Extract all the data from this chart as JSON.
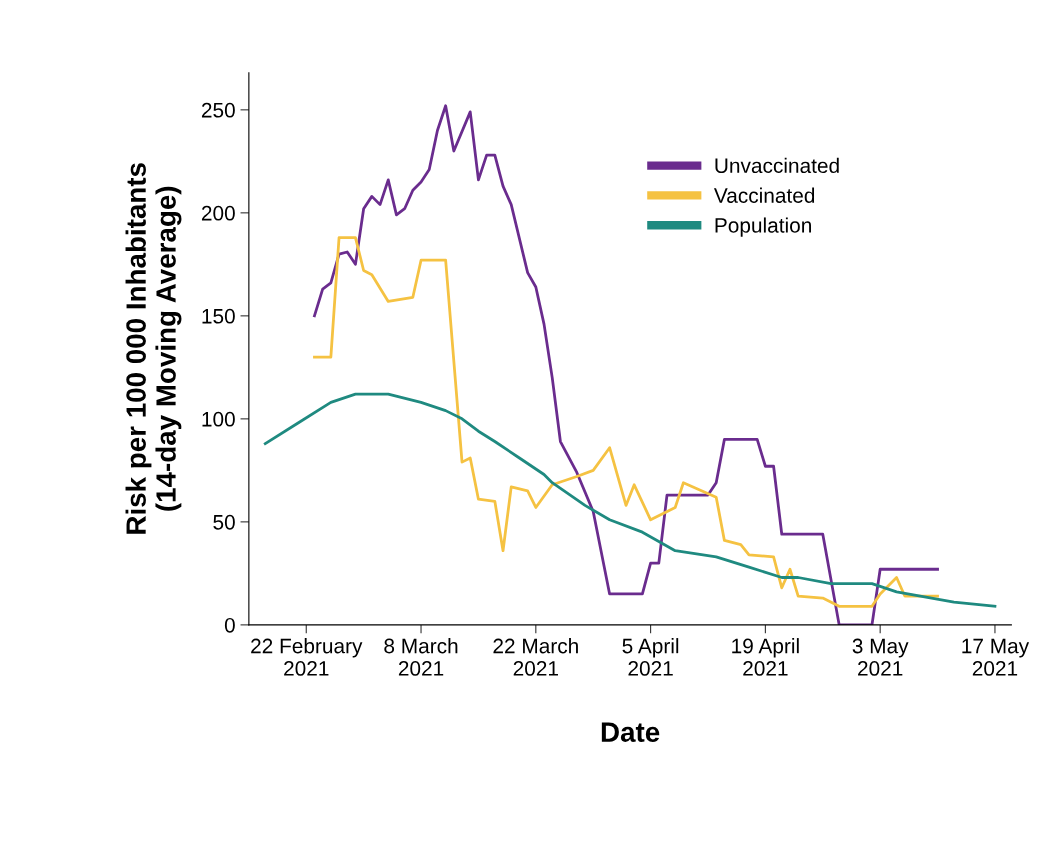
{
  "chart_data": {
    "type": "line",
    "xlabel": "Date",
    "ylabel": "Risk per 100 000 Inhabitants\n(14-day Moving Average)",
    "xlim": [
      "2021-02-15",
      "2021-05-19"
    ],
    "xticks": [
      {
        "value": "2021-02-22",
        "label": "22 February\n2021"
      },
      {
        "value": "2021-03-08",
        "label": "8 March\n2021"
      },
      {
        "value": "2021-03-22",
        "label": "22 March\n2021"
      },
      {
        "value": "2021-04-05",
        "label": "5 April\n2021"
      },
      {
        "value": "2021-04-19",
        "label": "19 April\n2021"
      },
      {
        "value": "2021-05-03",
        "label": "3 May\n2021"
      },
      {
        "value": "2021-05-17",
        "label": "17 May\n2021"
      }
    ],
    "ylim": [
      0,
      268
    ],
    "yticks": [
      0,
      50,
      100,
      150,
      200,
      250
    ],
    "grid": false,
    "legend": "top right",
    "marker": "none",
    "line_style": "solid",
    "series": [
      {
        "name": "Unvaccinated",
        "color": "#6a2c8e",
        "x": [
          "2021-02-23",
          "2021-02-24",
          "2021-02-25",
          "2021-02-26",
          "2021-02-27",
          "2021-02-28",
          "2021-03-01",
          "2021-03-02",
          "2021-03-03",
          "2021-03-04",
          "2021-03-05",
          "2021-03-06",
          "2021-03-07",
          "2021-03-08",
          "2021-03-09",
          "2021-03-10",
          "2021-03-11",
          "2021-03-12",
          "2021-03-14",
          "2021-03-15",
          "2021-03-16",
          "2021-03-17",
          "2021-03-18",
          "2021-03-19",
          "2021-03-21",
          "2021-03-22",
          "2021-03-23",
          "2021-03-24",
          "2021-03-25",
          "2021-03-27",
          "2021-03-29",
          "2021-03-31",
          "2021-04-04",
          "2021-04-05",
          "2021-04-06",
          "2021-04-07",
          "2021-04-12",
          "2021-04-13",
          "2021-04-14",
          "2021-04-18",
          "2021-04-19",
          "2021-04-20",
          "2021-04-21",
          "2021-04-26",
          "2021-04-28",
          "2021-05-02",
          "2021-05-03",
          "2021-05-10"
        ],
        "values": [
          150,
          163,
          166,
          180,
          181,
          175,
          202,
          208,
          204,
          216,
          199,
          202,
          211,
          215,
          221,
          240,
          252,
          230,
          249,
          216,
          228,
          228,
          213,
          204,
          171,
          164,
          146,
          120,
          89,
          74,
          55,
          15,
          15,
          30,
          30,
          63,
          63,
          69,
          90,
          90,
          77,
          77,
          44,
          44,
          0,
          0,
          27,
          27
        ]
      },
      {
        "name": "Vaccinated",
        "color": "#f5c242",
        "x": [
          "2021-02-23",
          "2021-02-25",
          "2021-02-26",
          "2021-02-28",
          "2021-03-01",
          "2021-03-02",
          "2021-03-04",
          "2021-03-07",
          "2021-03-08",
          "2021-03-11",
          "2021-03-13",
          "2021-03-14",
          "2021-03-15",
          "2021-03-17",
          "2021-03-18",
          "2021-03-19",
          "2021-03-21",
          "2021-03-22",
          "2021-03-24",
          "2021-03-27",
          "2021-03-29",
          "2021-03-31",
          "2021-04-02",
          "2021-04-03",
          "2021-04-05",
          "2021-04-08",
          "2021-04-09",
          "2021-04-13",
          "2021-04-14",
          "2021-04-16",
          "2021-04-17",
          "2021-04-20",
          "2021-04-21",
          "2021-04-22",
          "2021-04-23",
          "2021-04-26",
          "2021-04-28",
          "2021-05-02",
          "2021-05-03",
          "2021-05-05",
          "2021-05-06",
          "2021-05-10"
        ],
        "values": [
          130,
          130,
          188,
          188,
          172,
          170,
          157,
          159,
          177,
          177,
          79,
          81,
          61,
          60,
          36,
          67,
          65,
          57,
          68,
          72,
          75,
          86,
          58,
          68,
          51,
          57,
          69,
          62,
          41,
          39,
          34,
          33,
          18,
          27,
          14,
          13,
          9,
          9,
          15,
          23,
          14,
          14
        ]
      },
      {
        "name": "Population",
        "color": "#1f8a80",
        "x": [
          "2021-02-17",
          "2021-02-21",
          "2021-02-25",
          "2021-02-28",
          "2021-03-04",
          "2021-03-08",
          "2021-03-11",
          "2021-03-13",
          "2021-03-15",
          "2021-03-17",
          "2021-03-20",
          "2021-03-23",
          "2021-03-24",
          "2021-03-28",
          "2021-03-31",
          "2021-04-04",
          "2021-04-08",
          "2021-04-13",
          "2021-04-17",
          "2021-04-21",
          "2021-04-23",
          "2021-04-27",
          "2021-05-02",
          "2021-05-05",
          "2021-05-12",
          "2021-05-17"
        ],
        "values": [
          88,
          98,
          108,
          112,
          112,
          108,
          104,
          100,
          94,
          89,
          81,
          73,
          69,
          58,
          51,
          45,
          36,
          33,
          28,
          23,
          23,
          20,
          20,
          16,
          11,
          9
        ]
      }
    ]
  }
}
